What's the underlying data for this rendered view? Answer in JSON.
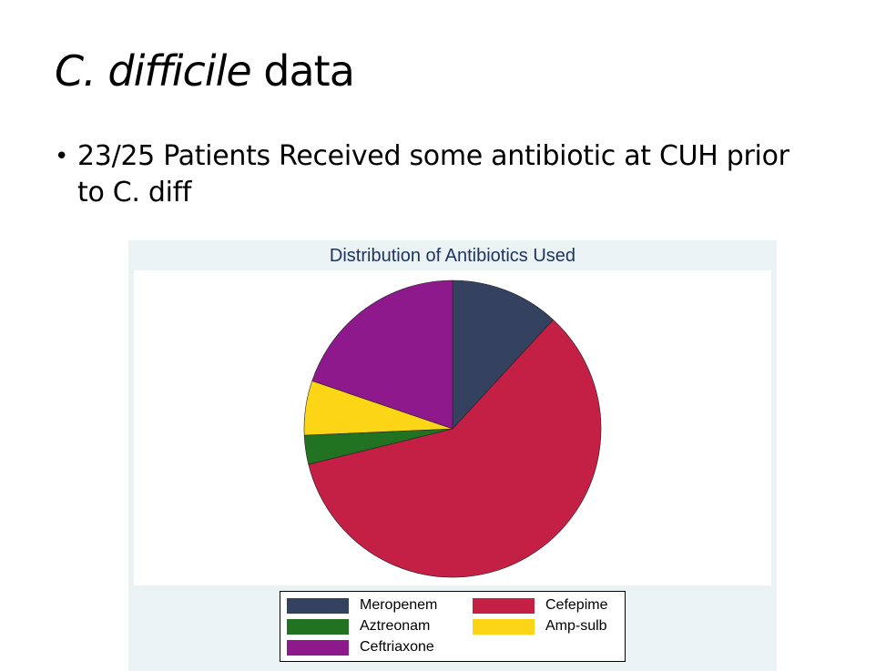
{
  "slide": {
    "title_italic": "C. difficile",
    "title_rest": " data",
    "bullet_symbol": "•",
    "bullet_text": "23/25 Patients Received some antibiotic at CUH prior to C. diff"
  },
  "chart_data": {
    "type": "pie",
    "title": "Distribution of Antibiotics Used",
    "start_angle_deg": 0,
    "direction": "clockwise",
    "slices": [
      {
        "label": "Meropenem",
        "value": 3,
        "color": "#34425f"
      },
      {
        "label": "Cefepime",
        "value": 15,
        "color": "#c41f44"
      },
      {
        "label": "Aztreonam",
        "value": 0.8,
        "color": "#217321"
      },
      {
        "label": "Amp-sulb",
        "value": 1.5,
        "color": "#fcd516"
      },
      {
        "label": "Ceftriaxone",
        "value": 5,
        "color": "#8e198c"
      }
    ],
    "legend": {
      "position": "bottom",
      "columns": 2,
      "order": [
        "Meropenem",
        "Cefepime",
        "Aztreonam",
        "Amp-sulb",
        "Ceftriaxone"
      ]
    }
  }
}
